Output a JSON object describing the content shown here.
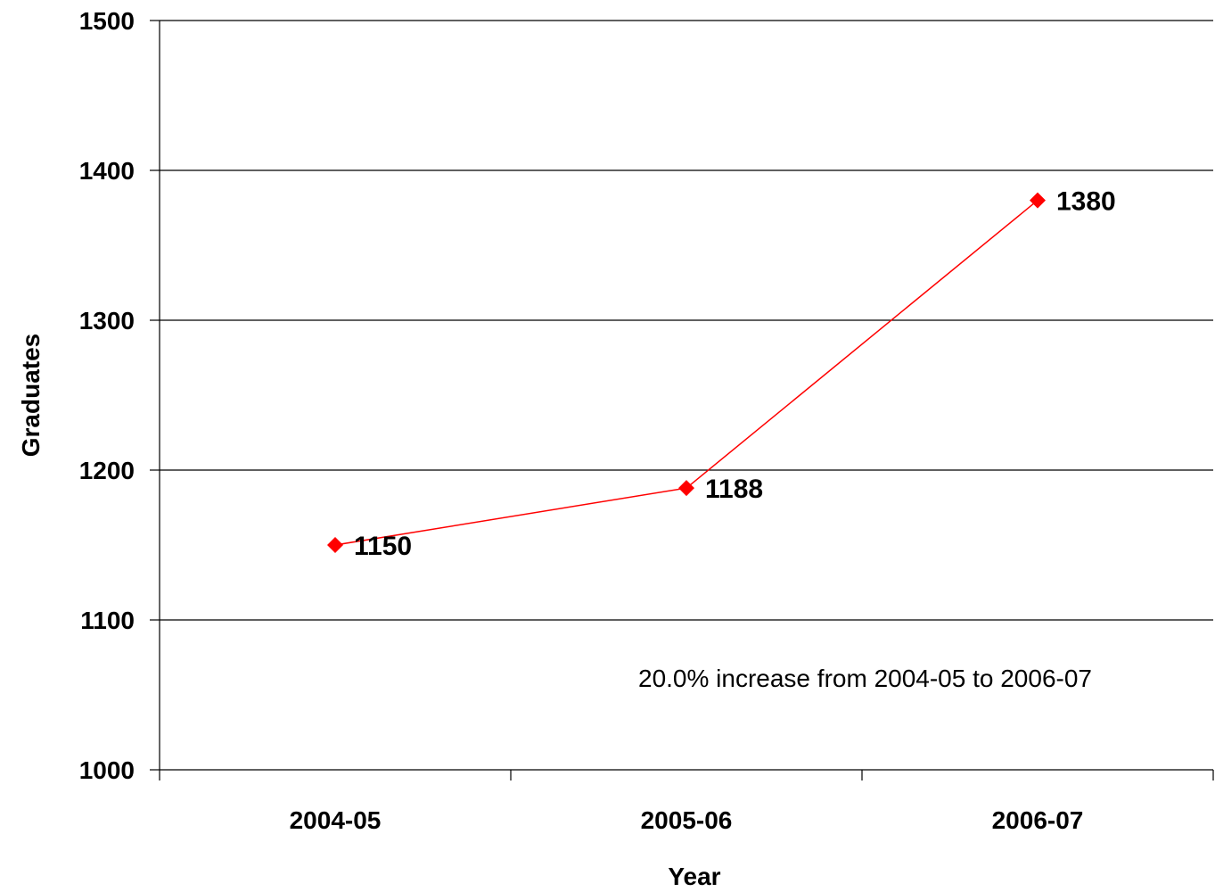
{
  "chart_data": {
    "type": "line",
    "categories": [
      "2004-05",
      "2005-06",
      "2006-07"
    ],
    "series": [
      {
        "values": [
          1150,
          1188,
          1380
        ],
        "color": "#ff0000",
        "marker": "diamond"
      }
    ],
    "data_labels": [
      "1150",
      "1188",
      "1380"
    ],
    "xlabel": "Year",
    "ylabel": "Graduates",
    "ylim": [
      1000,
      1500
    ],
    "yticks": [
      1000,
      1100,
      1200,
      1300,
      1400,
      1500
    ],
    "ytick_labels": [
      "1000",
      "1100",
      "1200",
      "1300",
      "1400",
      "1500"
    ],
    "annotation": "20.0% increase from 2004-05 to 2006-07",
    "grid": "horizontal",
    "legend": "none"
  }
}
